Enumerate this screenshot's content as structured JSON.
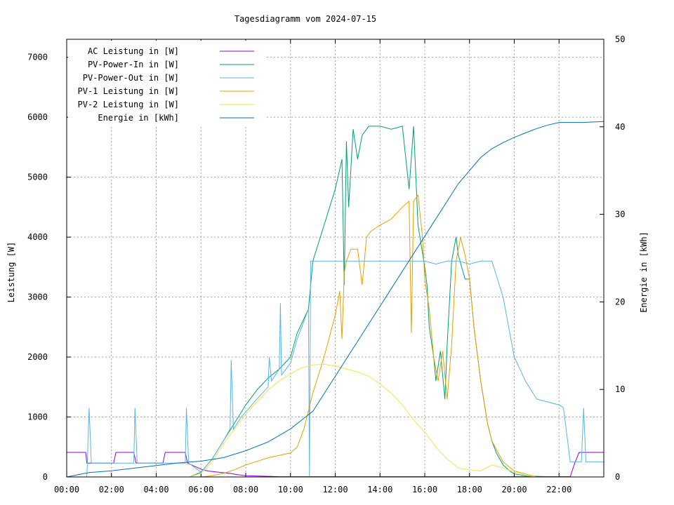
{
  "chart_data": {
    "type": "line",
    "title": "Tagesdiagramm vom 2024-07-15",
    "xlabel": "",
    "ylabel": "Leistung [W]",
    "y2label": "Energie in [kWh]",
    "xlim": [
      0,
      24
    ],
    "ylim": [
      0,
      7300
    ],
    "y2lim": [
      0,
      50
    ],
    "grid": true,
    "legend_position": "top-left",
    "x_ticks": [
      "00:00",
      "02:00",
      "04:00",
      "06:00",
      "08:00",
      "10:00",
      "12:00",
      "14:00",
      "16:00",
      "18:00",
      "20:00",
      "22:00"
    ],
    "y_ticks": [
      "0",
      "1000",
      "2000",
      "3000",
      "4000",
      "5000",
      "6000",
      "7000"
    ],
    "y2_ticks": [
      "0",
      "10",
      "20",
      "30",
      "40",
      "50"
    ],
    "x_unit": "hours of day",
    "series": [
      {
        "name": "AC Leistung in [W]",
        "color": "#9400d3",
        "axis": "left",
        "x": [
          0,
          0.85,
          0.9,
          1.1,
          2.1,
          2.2,
          3.0,
          3.1,
          4.3,
          4.4,
          5.3,
          5.4,
          6.0,
          6.3,
          6.8,
          7.3,
          7.6,
          8.0,
          9.0,
          9.5,
          10.0,
          10.2,
          10.4,
          10.6,
          10.8,
          11.0,
          12.0,
          13.0,
          14.0,
          15.0,
          16.0,
          17.0,
          18.0,
          19.0,
          19.6,
          20.0,
          21.0,
          22.0,
          22.5,
          22.7,
          22.9,
          23.9,
          24
        ],
        "y": [
          410,
          410,
          230,
          230,
          230,
          410,
          410,
          230,
          230,
          410,
          410,
          230,
          130,
          100,
          80,
          60,
          40,
          20,
          10,
          5,
          5,
          5,
          5,
          5,
          5,
          5,
          5,
          5,
          5,
          5,
          5,
          5,
          5,
          5,
          5,
          5,
          5,
          5,
          5,
          230,
          410,
          410,
          410
        ]
      },
      {
        "name": "PV-Power-In in [W]",
        "color": "#009e73",
        "axis": "left",
        "x": [
          0,
          5.5,
          6.0,
          6.5,
          7.0,
          7.5,
          8.0,
          8.5,
          9.0,
          9.5,
          10.0,
          10.3,
          10.8,
          11.0,
          11.5,
          12.0,
          12.3,
          12.4,
          12.5,
          12.6,
          12.8,
          13.0,
          13.2,
          13.5,
          14.0,
          14.5,
          15.0,
          15.3,
          15.5,
          15.7,
          16.0,
          16.1,
          16.2,
          16.4,
          16.5,
          16.7,
          16.9,
          17.0,
          17.2,
          17.4,
          17.5,
          17.8,
          18.0,
          18.2,
          18.5,
          18.8,
          19.0,
          19.2,
          19.5,
          19.8,
          20.0,
          20.5,
          21.0,
          22.0,
          24
        ],
        "y": [
          0,
          0,
          80,
          300,
          600,
          900,
          1200,
          1450,
          1650,
          1800,
          2000,
          2400,
          2800,
          3600,
          4200,
          4800,
          5300,
          3200,
          5600,
          4500,
          5800,
          5300,
          5700,
          5850,
          5850,
          5800,
          5850,
          4800,
          5850,
          4200,
          3500,
          3200,
          2500,
          2000,
          1600,
          2100,
          1300,
          2200,
          3600,
          4000,
          3700,
          3300,
          3300,
          2500,
          1600,
          900,
          600,
          400,
          200,
          100,
          50,
          20,
          10,
          0,
          0
        ]
      },
      {
        "name": "PV-Power-Out in [W]",
        "color": "#56b4e9",
        "axis": "left",
        "x": [
          0,
          0.9,
          1.0,
          1.1,
          3.0,
          3.05,
          3.15,
          5.3,
          5.35,
          5.45,
          6.0,
          6.5,
          7.0,
          7.3,
          7.35,
          7.45,
          7.8,
          8.5,
          9.0,
          9.05,
          9.15,
          9.5,
          9.55,
          9.6,
          10.0,
          10.3,
          10.8,
          10.85,
          10.9,
          11.0,
          12.0,
          13.0,
          14.0,
          15.0,
          15.5,
          16.0,
          16.5,
          17.0,
          17.5,
          18.0,
          18.5,
          19.0,
          19.5,
          20.0,
          20.5,
          21.0,
          22.0,
          22.1,
          22.2,
          22.5,
          23.0,
          23.1,
          23.2,
          23.9,
          24
        ],
        "y": [
          0,
          0,
          1150,
          230,
          230,
          1150,
          230,
          230,
          1150,
          230,
          80,
          300,
          600,
          800,
          1950,
          800,
          1000,
          1300,
          1500,
          2000,
          1600,
          1800,
          2900,
          1700,
          1900,
          2300,
          2800,
          0,
          3600,
          3600,
          3600,
          3600,
          3600,
          3600,
          3600,
          3600,
          3550,
          3600,
          3600,
          3550,
          3600,
          3600,
          3000,
          2000,
          1600,
          1300,
          1200,
          1180,
          1150,
          250,
          250,
          1150,
          250,
          250,
          250
        ]
      },
      {
        "name": "PV-1 Leistung in [W]",
        "color": "#e69f00",
        "axis": "left",
        "x": [
          0,
          6.0,
          6.5,
          7.0,
          7.5,
          8.0,
          8.5,
          9.0,
          9.5,
          10.0,
          10.3,
          10.6,
          11.0,
          11.5,
          12.0,
          12.2,
          12.3,
          12.4,
          12.5,
          12.7,
          13.0,
          13.2,
          13.4,
          13.6,
          14.0,
          14.5,
          15.0,
          15.3,
          15.4,
          15.5,
          15.7,
          15.9,
          16.0,
          16.2,
          16.4,
          16.6,
          16.8,
          17.0,
          17.2,
          17.4,
          17.6,
          17.8,
          18.0,
          18.2,
          18.5,
          18.8,
          19.0,
          19.5,
          20.0,
          20.5,
          21,
          24
        ],
        "y": [
          0,
          0,
          20,
          60,
          120,
          200,
          260,
          320,
          360,
          400,
          500,
          800,
          1400,
          2000,
          2700,
          3100,
          2300,
          3400,
          3600,
          3800,
          3800,
          3200,
          4000,
          4100,
          4200,
          4300,
          4500,
          4600,
          2400,
          4600,
          4700,
          4000,
          3300,
          2800,
          2000,
          1600,
          2100,
          1300,
          2200,
          3600,
          4000,
          3700,
          3300,
          2500,
          1600,
          900,
          600,
          250,
          100,
          50,
          0,
          0
        ]
      },
      {
        "name": "PV-2 Leistung in [W]",
        "color": "#f0e442",
        "axis": "left",
        "x": [
          0,
          5.5,
          6.0,
          6.5,
          7.0,
          7.5,
          8.0,
          8.5,
          9.0,
          9.5,
          10.0,
          10.5,
          11.0,
          11.5,
          12.0,
          12.5,
          13.0,
          13.5,
          14.0,
          14.5,
          15.0,
          15.5,
          16.0,
          16.5,
          17.0,
          17.5,
          18.0,
          18.5,
          19.0,
          19.5,
          20.0,
          20.5,
          21,
          24
        ],
        "y": [
          0,
          0,
          60,
          250,
          550,
          800,
          1050,
          1250,
          1450,
          1600,
          1720,
          1820,
          1870,
          1880,
          1850,
          1800,
          1750,
          1680,
          1550,
          1400,
          1200,
          950,
          750,
          500,
          300,
          150,
          120,
          100,
          200,
          150,
          80,
          30,
          0,
          0
        ]
      },
      {
        "name": "Energie in [kWh]",
        "color": "#0072b2",
        "axis": "right",
        "x": [
          0,
          1,
          2,
          3,
          4,
          5,
          6,
          7,
          8,
          9,
          10,
          10.5,
          11,
          11.5,
          12,
          12.5,
          13,
          13.5,
          14,
          14.5,
          15,
          15.5,
          16,
          16.5,
          17,
          17.5,
          18,
          18.5,
          19,
          19.5,
          20,
          20.5,
          21,
          21.5,
          22,
          23,
          24
        ],
        "y": [
          0,
          0.5,
          0.7,
          1.0,
          1.3,
          1.6,
          1.8,
          2.2,
          3.0,
          4.0,
          5.5,
          6.5,
          7.5,
          9.5,
          11.5,
          13.5,
          15.5,
          17.5,
          19.5,
          21.5,
          23.5,
          25.5,
          27.5,
          29.5,
          31.5,
          33.5,
          35.0,
          36.5,
          37.5,
          38.2,
          38.8,
          39.3,
          39.8,
          40.2,
          40.5,
          40.5,
          40.6
        ]
      }
    ]
  }
}
